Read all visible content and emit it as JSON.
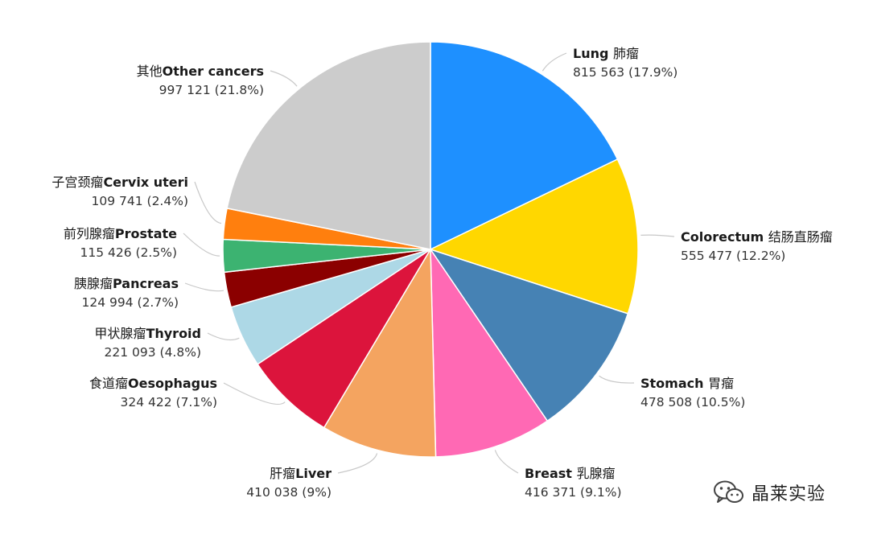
{
  "chart_data": {
    "type": "pie",
    "start_angle_deg": 0,
    "direction": "clockwise",
    "slices": [
      {
        "label_en": "Lung",
        "label_zh": "肺瘤",
        "value": 815563,
        "value_text": "815 563 (17.9%)",
        "percent": 17.9,
        "color": "#1e90ff",
        "label_side": "right"
      },
      {
        "label_en": "Colorectum",
        "label_zh": "结肠直肠瘤",
        "value": 555477,
        "value_text": "555 477 (12.2%)",
        "percent": 12.2,
        "color": "#ffd700",
        "label_side": "right"
      },
      {
        "label_en": "Stomach",
        "label_zh": "胃瘤",
        "value": 478508,
        "value_text": "478 508 (10.5%)",
        "percent": 10.5,
        "color": "#4682b4",
        "label_side": "right"
      },
      {
        "label_en": "Breast",
        "label_zh": "乳腺瘤",
        "value": 416371,
        "value_text": "416 371 (9.1%)",
        "percent": 9.1,
        "color": "#ff69b4",
        "label_side": "right"
      },
      {
        "label_en": "Liver",
        "label_zh": "肝瘤",
        "value": 410038,
        "value_text": "410 038 (9%)",
        "percent": 9.0,
        "color": "#f4a460",
        "label_side": "left"
      },
      {
        "label_en": "Oesophagus",
        "label_zh": "食道瘤",
        "value": 324422,
        "value_text": "324 422 (7.1%)",
        "percent": 7.1,
        "color": "#dc143c",
        "label_side": "left"
      },
      {
        "label_en": "Thyroid",
        "label_zh": "甲状腺瘤",
        "value": 221093,
        "value_text": "221 093 (4.8%)",
        "percent": 4.8,
        "color": "#add8e6",
        "label_side": "left"
      },
      {
        "label_en": "Pancreas",
        "label_zh": "胰腺瘤",
        "value": 124994,
        "value_text": "124 994 (2.7%)",
        "percent": 2.7,
        "color": "#8b0000",
        "label_side": "left"
      },
      {
        "label_en": "Prostate",
        "label_zh": "前列腺瘤",
        "value": 115426,
        "value_text": "115 426 (2.5%)",
        "percent": 2.5,
        "color": "#3cb371",
        "label_side": "left"
      },
      {
        "label_en": "Cervix uteri",
        "label_zh": "子宫颈瘤",
        "value": 109741,
        "value_text": "109 741 (2.4%)",
        "percent": 2.4,
        "color": "#ff7f0e",
        "label_side": "left"
      },
      {
        "label_en": "Other cancers",
        "label_zh": "其他",
        "value": 997121,
        "value_text": "997 121 (21.8%)",
        "percent": 21.8,
        "color": "#cccccc",
        "label_side": "left"
      }
    ]
  },
  "watermark": {
    "text": "晶莱实验",
    "icon": "wechat-icon"
  }
}
